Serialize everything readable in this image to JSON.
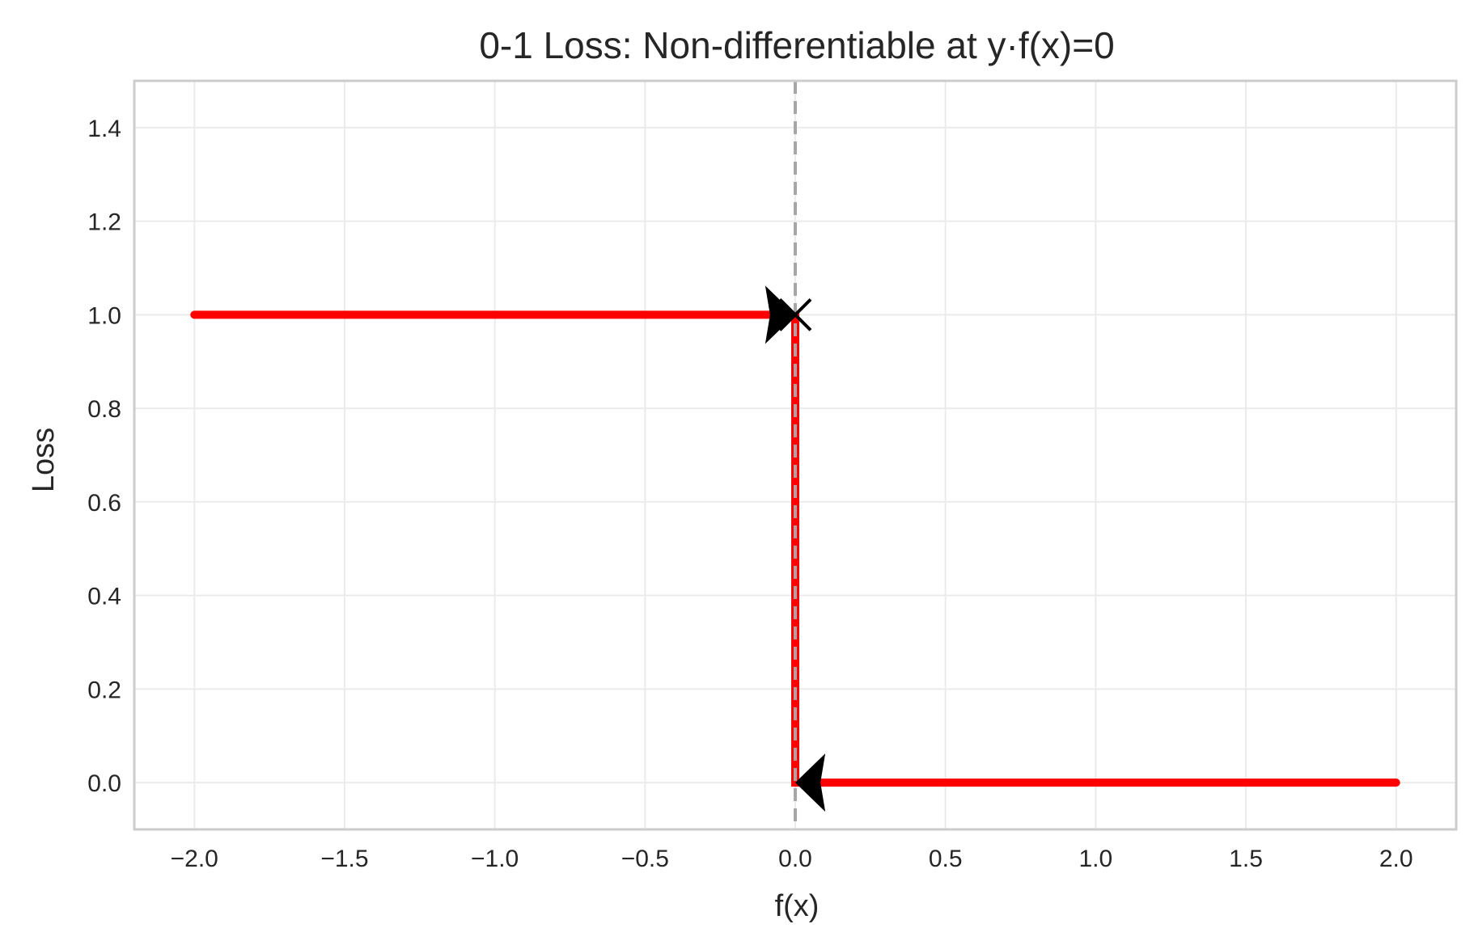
{
  "chart_data": {
    "type": "line",
    "title": "0-1 Loss: Non-differentiable at y·f(x)=0",
    "xlabel": "f(x)",
    "ylabel": "Loss",
    "xlim": [
      -2.2,
      2.2
    ],
    "ylim": [
      -0.1,
      1.5
    ],
    "x_ticks": [
      -2.0,
      -1.5,
      -1.0,
      -0.5,
      0.0,
      0.5,
      1.0,
      1.5,
      2.0
    ],
    "x_tick_labels": [
      "−2.0",
      "−1.5",
      "−1.0",
      "−0.5",
      "0.0",
      "0.5",
      "1.0",
      "1.5",
      "2.0"
    ],
    "y_ticks": [
      0.0,
      0.2,
      0.4,
      0.6,
      0.8,
      1.0,
      1.2,
      1.4
    ],
    "y_tick_labels": [
      "0.0",
      "0.2",
      "0.4",
      "0.6",
      "0.8",
      "1.0",
      "1.2",
      "1.4"
    ],
    "grid": true,
    "series": [
      {
        "color": "#ff0000",
        "style": "solid",
        "x": [
          -2.0,
          0.0,
          0.0,
          2.0
        ],
        "y": [
          1.0,
          1.0,
          0.0,
          0.0
        ]
      }
    ],
    "vline": {
      "x": 0.0,
      "style": "dashed",
      "color": "#a6a6a6"
    },
    "annotations": [
      {
        "type": "marker",
        "symbol": "x",
        "x": 0.0,
        "y": 1.0,
        "color": "#000000"
      },
      {
        "type": "arrow",
        "direction": "right",
        "x": 0.0,
        "y": 1.0,
        "from_x": -0.1,
        "color": "#000000"
      },
      {
        "type": "arrow",
        "direction": "left",
        "x": 0.0,
        "y": 0.0,
        "from_x": 0.1,
        "color": "#000000"
      }
    ],
    "colors": {
      "line": "#ff0000",
      "grid": "#ebebeb",
      "frame": "#cccccc",
      "text": "#262626"
    }
  }
}
